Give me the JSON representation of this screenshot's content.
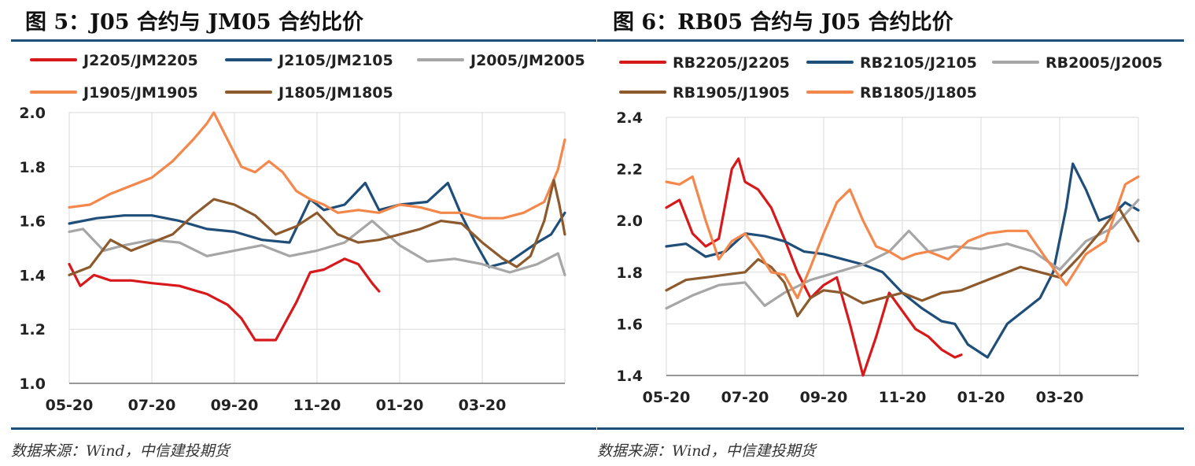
{
  "figures": [
    {
      "title": "图 5：J05 合约与 JM05 合约比价",
      "source": "数据来源：Wind，中信建投期货"
    },
    {
      "title": "图 6：RB05 合约与 J05 合约比价",
      "source": "数据来源：Wind，中信建投期货"
    }
  ],
  "chart_data": [
    {
      "type": "line",
      "title": "",
      "x_tick_labels": [
        "05-20",
        "07-20",
        "09-20",
        "11-20",
        "01-20",
        "03-20"
      ],
      "y_ticks": [
        1.0,
        1.2,
        1.4,
        1.6,
        1.8,
        2.0
      ],
      "ylim": [
        1.0,
        2.0
      ],
      "x_range": [
        0,
        360
      ],
      "grid": true,
      "legend_position": "top",
      "series": [
        {
          "name": "J2205/JM2205",
          "color": "#d7191c",
          "x": [
            0,
            8,
            18,
            30,
            45,
            60,
            80,
            100,
            115,
            125,
            135,
            150,
            165,
            175,
            185,
            200,
            210,
            220,
            225
          ],
          "y": [
            1.44,
            1.36,
            1.4,
            1.38,
            1.38,
            1.37,
            1.36,
            1.33,
            1.29,
            1.24,
            1.16,
            1.16,
            1.3,
            1.41,
            1.42,
            1.46,
            1.44,
            1.37,
            1.34
          ]
        },
        {
          "name": "J2105/JM2105",
          "color": "#1f4e79",
          "x": [
            0,
            20,
            40,
            60,
            80,
            100,
            120,
            140,
            160,
            175,
            185,
            200,
            215,
            225,
            240,
            260,
            275,
            285,
            295,
            305,
            320,
            340,
            350,
            360
          ],
          "y": [
            1.59,
            1.61,
            1.62,
            1.62,
            1.6,
            1.57,
            1.56,
            1.53,
            1.52,
            1.68,
            1.64,
            1.66,
            1.74,
            1.64,
            1.66,
            1.67,
            1.74,
            1.62,
            1.52,
            1.43,
            1.45,
            1.52,
            1.55,
            1.63
          ]
        },
        {
          "name": "J2005/JM2005",
          "color": "#a6a6a6",
          "x": [
            0,
            10,
            25,
            40,
            60,
            80,
            100,
            120,
            140,
            160,
            180,
            200,
            220,
            240,
            260,
            280,
            300,
            320,
            340,
            355,
            360
          ],
          "y": [
            1.56,
            1.57,
            1.49,
            1.51,
            1.53,
            1.52,
            1.47,
            1.49,
            1.51,
            1.47,
            1.49,
            1.52,
            1.6,
            1.51,
            1.45,
            1.46,
            1.44,
            1.41,
            1.44,
            1.48,
            1.4
          ]
        },
        {
          "name": "J1905/JM1905",
          "color": "#f4874b",
          "x": [
            0,
            15,
            30,
            45,
            60,
            75,
            90,
            100,
            105,
            115,
            125,
            135,
            145,
            155,
            165,
            175,
            185,
            195,
            210,
            225,
            240,
            255,
            270,
            285,
            300,
            315,
            330,
            345,
            355,
            360
          ],
          "y": [
            1.65,
            1.66,
            1.7,
            1.73,
            1.76,
            1.82,
            1.9,
            1.96,
            2.0,
            1.9,
            1.8,
            1.78,
            1.82,
            1.78,
            1.71,
            1.68,
            1.66,
            1.63,
            1.64,
            1.63,
            1.66,
            1.65,
            1.63,
            1.63,
            1.61,
            1.61,
            1.63,
            1.67,
            1.79,
            1.9
          ]
        },
        {
          "name": "J1805/JM1805",
          "color": "#8c5a2c",
          "x": [
            0,
            15,
            30,
            45,
            60,
            75,
            90,
            105,
            120,
            135,
            150,
            165,
            180,
            195,
            210,
            225,
            240,
            255,
            270,
            285,
            300,
            315,
            325,
            335,
            345,
            352,
            356,
            360
          ],
          "y": [
            1.4,
            1.43,
            1.53,
            1.49,
            1.52,
            1.55,
            1.62,
            1.68,
            1.66,
            1.62,
            1.55,
            1.58,
            1.63,
            1.55,
            1.52,
            1.53,
            1.55,
            1.57,
            1.6,
            1.59,
            1.52,
            1.46,
            1.43,
            1.47,
            1.6,
            1.75,
            1.66,
            1.55
          ]
        }
      ]
    },
    {
      "type": "line",
      "title": "",
      "x_tick_labels": [
        "05-20",
        "07-20",
        "09-20",
        "11-20",
        "01-20",
        "03-20"
      ],
      "y_ticks": [
        1.4,
        1.6,
        1.8,
        2.0,
        2.2,
        2.4
      ],
      "ylim": [
        1.4,
        2.4
      ],
      "x_range": [
        0,
        360
      ],
      "grid": true,
      "legend_position": "top",
      "series": [
        {
          "name": "RB2205/J2205",
          "color": "#d7191c",
          "x": [
            0,
            10,
            20,
            30,
            40,
            50,
            55,
            60,
            70,
            80,
            90,
            100,
            110,
            120,
            130,
            140,
            150,
            160,
            170,
            180,
            190,
            200,
            210,
            220,
            225
          ],
          "y": [
            2.05,
            2.08,
            1.95,
            1.9,
            1.93,
            2.2,
            2.24,
            2.15,
            2.12,
            2.05,
            1.93,
            1.8,
            1.7,
            1.75,
            1.78,
            1.6,
            1.4,
            1.55,
            1.72,
            1.65,
            1.58,
            1.55,
            1.5,
            1.47,
            1.48
          ]
        },
        {
          "name": "RB2105/J2105",
          "color": "#1f4e79",
          "x": [
            0,
            15,
            30,
            45,
            60,
            75,
            90,
            105,
            120,
            135,
            150,
            165,
            180,
            195,
            210,
            220,
            230,
            245,
            260,
            275,
            285,
            295,
            305,
            310,
            320,
            330,
            340,
            350,
            360
          ],
          "y": [
            1.9,
            1.91,
            1.86,
            1.88,
            1.95,
            1.94,
            1.92,
            1.88,
            1.87,
            1.85,
            1.83,
            1.8,
            1.72,
            1.66,
            1.61,
            1.6,
            1.52,
            1.47,
            1.6,
            1.66,
            1.7,
            1.8,
            2.05,
            2.22,
            2.12,
            2.0,
            2.02,
            2.07,
            2.04
          ]
        },
        {
          "name": "RB2005/J2005",
          "color": "#a6a6a6",
          "x": [
            0,
            20,
            40,
            60,
            75,
            90,
            110,
            130,
            150,
            170,
            185,
            200,
            220,
            240,
            260,
            280,
            300,
            320,
            340,
            360
          ],
          "y": [
            1.66,
            1.71,
            1.75,
            1.76,
            1.67,
            1.72,
            1.77,
            1.8,
            1.83,
            1.88,
            1.96,
            1.88,
            1.9,
            1.89,
            1.91,
            1.88,
            1.81,
            1.92,
            1.97,
            2.08
          ]
        },
        {
          "name": "RB1905/J1905",
          "color": "#8c5a2c",
          "x": [
            0,
            15,
            30,
            45,
            60,
            70,
            80,
            90,
            100,
            110,
            120,
            135,
            150,
            165,
            180,
            195,
            210,
            225,
            240,
            255,
            270,
            285,
            300,
            315,
            330,
            345,
            360
          ],
          "y": [
            1.73,
            1.77,
            1.78,
            1.79,
            1.8,
            1.85,
            1.82,
            1.76,
            1.63,
            1.7,
            1.73,
            1.72,
            1.68,
            1.7,
            1.72,
            1.69,
            1.72,
            1.73,
            1.76,
            1.79,
            1.82,
            1.8,
            1.78,
            1.86,
            1.95,
            2.05,
            1.92
          ]
        },
        {
          "name": "RB1805/J1805",
          "color": "#f4874b",
          "x": [
            0,
            10,
            20,
            30,
            40,
            50,
            60,
            70,
            80,
            90,
            100,
            110,
            120,
            130,
            140,
            150,
            160,
            170,
            180,
            190,
            200,
            215,
            230,
            245,
            260,
            275,
            290,
            305,
            320,
            335,
            350,
            360
          ],
          "y": [
            2.15,
            2.14,
            2.17,
            2.0,
            1.85,
            1.92,
            1.95,
            1.88,
            1.8,
            1.79,
            1.7,
            1.82,
            1.95,
            2.07,
            2.12,
            2.0,
            1.9,
            1.88,
            1.85,
            1.87,
            1.88,
            1.85,
            1.92,
            1.95,
            1.96,
            1.96,
            1.85,
            1.75,
            1.87,
            1.92,
            2.14,
            2.17
          ]
        }
      ]
    }
  ]
}
